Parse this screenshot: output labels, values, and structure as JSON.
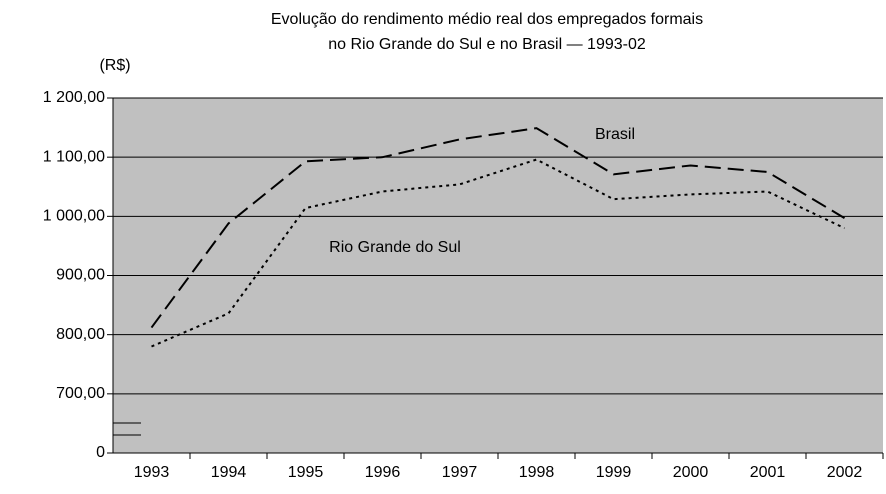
{
  "chart_data": {
    "type": "line",
    "title": "Evolução do rendimento médio real dos empregados formais",
    "subtitle": "no Rio Grande do Sul e no Brasil  — 1993-02",
    "y_label": "(R$)",
    "categories": [
      "1993",
      "1994",
      "1995",
      "1996",
      "1997",
      "1998",
      "1999",
      "2000",
      "2001",
      "2002"
    ],
    "series": [
      {
        "name": "Brasil",
        "color": "#000000",
        "dash": "dashed",
        "values": [
          812,
          988,
          1093,
          1100,
          1130,
          1149,
          1071,
          1086,
          1075,
          997
        ]
      },
      {
        "name": "Rio Grande do Sul",
        "color": "#000000",
        "dash": "dotted",
        "values": [
          780,
          836,
          1014,
          1042,
          1054,
          1096,
          1029,
          1037,
          1042,
          980
        ]
      }
    ],
    "ylim": [
      0,
      1200
    ],
    "axis_break": [
      0,
      700
    ],
    "yticks": [
      0,
      {
        "value": 700,
        "label": "700,00"
      },
      {
        "value": 800,
        "label": "800,00"
      },
      {
        "value": 900,
        "label": "900,00"
      },
      {
        "value": 1000,
        "label": "1 000,00"
      },
      {
        "value": 1100,
        "label": "1 100,00"
      },
      {
        "value": 1200,
        "label": "1 200,00"
      }
    ],
    "grid": true,
    "background": "#c0c0c0"
  }
}
